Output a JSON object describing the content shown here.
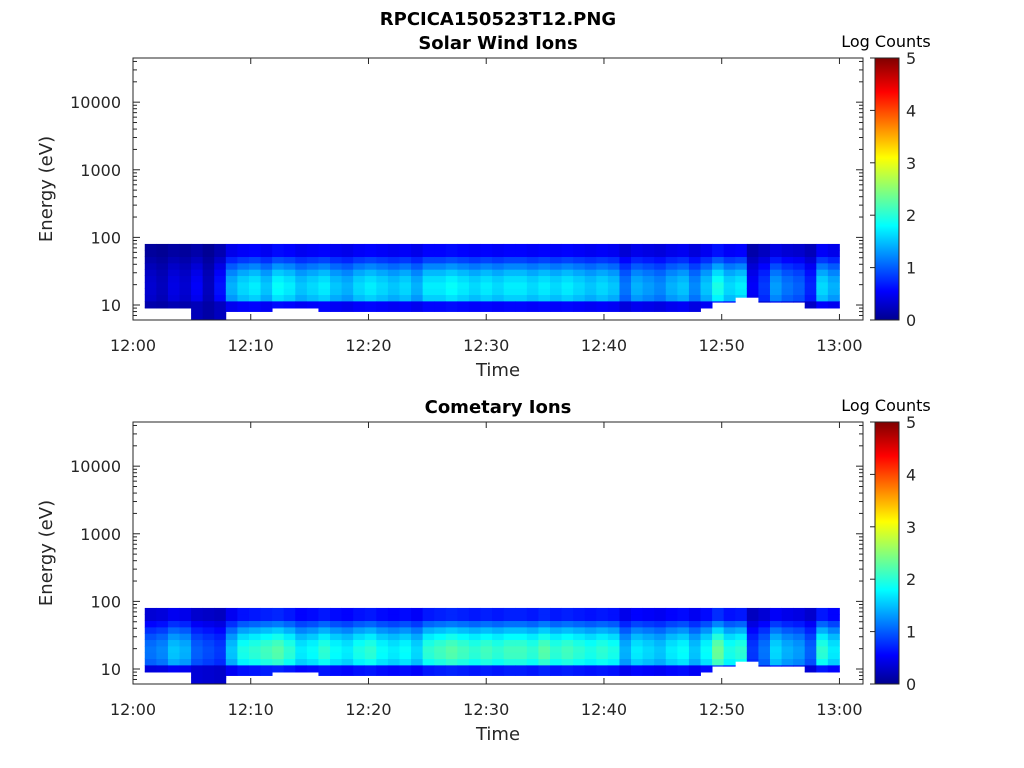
{
  "figure_title": "RPCICA150523T12.PNG",
  "colors": {
    "background": "#ffffff",
    "axis": "#262626",
    "jet_low": "#00008f",
    "jet_high": "#800000"
  },
  "chart_data": [
    {
      "type": "heatmap",
      "title": "Solar Wind Ions",
      "xlabel": "Time",
      "ylabel": "Energy (eV)",
      "yscale": "log",
      "ylim": [
        6,
        45000
      ],
      "xlim": [
        "12:00",
        "13:02"
      ],
      "x_ticks": [
        "12:00",
        "12:10",
        "12:20",
        "12:30",
        "12:40",
        "12:50",
        "13:00"
      ],
      "y_ticks": [
        "10",
        "100",
        "1000",
        "10000"
      ],
      "colorbar": {
        "title": "Log Counts",
        "range": [
          0,
          5
        ],
        "ticks": [
          "0",
          "1",
          "2",
          "3",
          "4",
          "5"
        ],
        "colormap": "jet"
      },
      "energy_range_ev": [
        6,
        80
      ],
      "time_start": "12:01",
      "time_end": "13:00",
      "column_log_counts": [
        0.4,
        0.3,
        0.5,
        0.4,
        0.6,
        0.3,
        0.7,
        1.5,
        1.7,
        1.8,
        1.6,
        1.9,
        1.8,
        1.6,
        1.7,
        1.8,
        1.6,
        1.5,
        1.7,
        1.8,
        1.7,
        1.6,
        1.7,
        1.5,
        1.8,
        1.8,
        1.9,
        1.8,
        1.7,
        1.8,
        1.7,
        1.8,
        1.8,
        1.7,
        1.8,
        1.7,
        1.8,
        1.7,
        1.6,
        1.7,
        1.6,
        1.2,
        1.5,
        1.4,
        1.3,
        1.5,
        1.6,
        1.3,
        1.6,
        2.0,
        1.7,
        1.8,
        0.6,
        0.9,
        1.4,
        1.2,
        1.1,
        0.8,
        1.7,
        1.5
      ],
      "column_min_energy_ev": [
        9,
        9,
        9,
        9,
        6,
        6,
        6,
        8,
        8,
        8,
        8,
        9,
        9,
        9,
        9,
        8,
        8,
        8,
        8,
        8,
        8,
        8,
        8,
        8,
        8,
        8,
        8,
        8,
        8,
        8,
        8,
        8,
        8,
        8,
        8,
        8,
        8,
        8,
        8,
        8,
        8,
        8,
        8,
        8,
        8,
        8,
        8,
        8,
        9,
        11,
        11,
        13,
        13,
        11,
        11,
        11,
        11,
        9,
        9,
        9
      ]
    },
    {
      "type": "heatmap",
      "title": "Cometary Ions",
      "xlabel": "Time",
      "ylabel": "Energy (eV)",
      "yscale": "log",
      "ylim": [
        6,
        45000
      ],
      "xlim": [
        "12:00",
        "13:02"
      ],
      "x_ticks": [
        "12:00",
        "12:10",
        "12:20",
        "12:30",
        "12:40",
        "12:50",
        "13:00"
      ],
      "y_ticks": [
        "10",
        "100",
        "1000",
        "10000"
      ],
      "colorbar": {
        "title": "Log Counts",
        "range": [
          0,
          5
        ],
        "ticks": [
          "0",
          "1",
          "2",
          "3",
          "4",
          "5"
        ],
        "colormap": "jet"
      },
      "energy_range_ev": [
        6,
        80
      ],
      "time_start": "12:01",
      "time_end": "13:00",
      "column_log_counts": [
        1.2,
        1.3,
        1.6,
        1.5,
        1.1,
        1.0,
        0.9,
        1.6,
        2.0,
        2.1,
        2.2,
        2.3,
        2.1,
        1.8,
        1.9,
        2.1,
        1.9,
        1.8,
        2.0,
        2.1,
        1.9,
        1.8,
        1.9,
        1.7,
        2.1,
        2.2,
        2.3,
        2.2,
        2.1,
        2.2,
        2.1,
        2.2,
        2.2,
        2.1,
        2.3,
        2.1,
        2.2,
        2.1,
        2.0,
        2.1,
        2.0,
        1.5,
        1.8,
        1.7,
        1.6,
        1.8,
        1.9,
        1.6,
        1.9,
        2.4,
        2.0,
        2.1,
        0.9,
        1.2,
        1.7,
        1.5,
        1.4,
        1.1,
        2.1,
        1.8
      ],
      "column_min_energy_ev": [
        9,
        9,
        9,
        9,
        6,
        6,
        6,
        8,
        8,
        8,
        8,
        9,
        9,
        9,
        9,
        8,
        8,
        8,
        8,
        8,
        8,
        8,
        8,
        8,
        8,
        8,
        8,
        8,
        8,
        8,
        8,
        8,
        8,
        8,
        8,
        8,
        8,
        8,
        8,
        8,
        8,
        8,
        8,
        8,
        8,
        8,
        8,
        8,
        9,
        11,
        11,
        13,
        13,
        11,
        11,
        11,
        11,
        9,
        9,
        9
      ]
    }
  ]
}
